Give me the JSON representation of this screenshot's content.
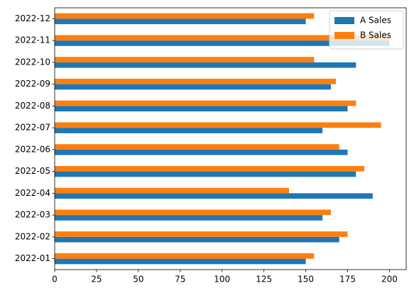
{
  "chart_data": {
    "type": "barh",
    "categories": [
      "2022-01",
      "2022-02",
      "2022-03",
      "2022-04",
      "2022-05",
      "2022-06",
      "2022-07",
      "2022-08",
      "2022-09",
      "2022-10",
      "2022-11",
      "2022-12"
    ],
    "series": [
      {
        "name": "A Sales",
        "color": "#1f77b4",
        "values": [
          150,
          170,
          160,
          190,
          180,
          175,
          160,
          175,
          165,
          180,
          200,
          150
        ]
      },
      {
        "name": "B Sales",
        "color": "#ff7f0e",
        "values": [
          155,
          175,
          165,
          140,
          185,
          170,
          195,
          180,
          168,
          155,
          200,
          155
        ]
      }
    ],
    "xlim": [
      0,
      210
    ],
    "xticks": [
      0,
      25,
      50,
      75,
      100,
      125,
      150,
      175,
      200
    ],
    "legend": "upper right"
  }
}
